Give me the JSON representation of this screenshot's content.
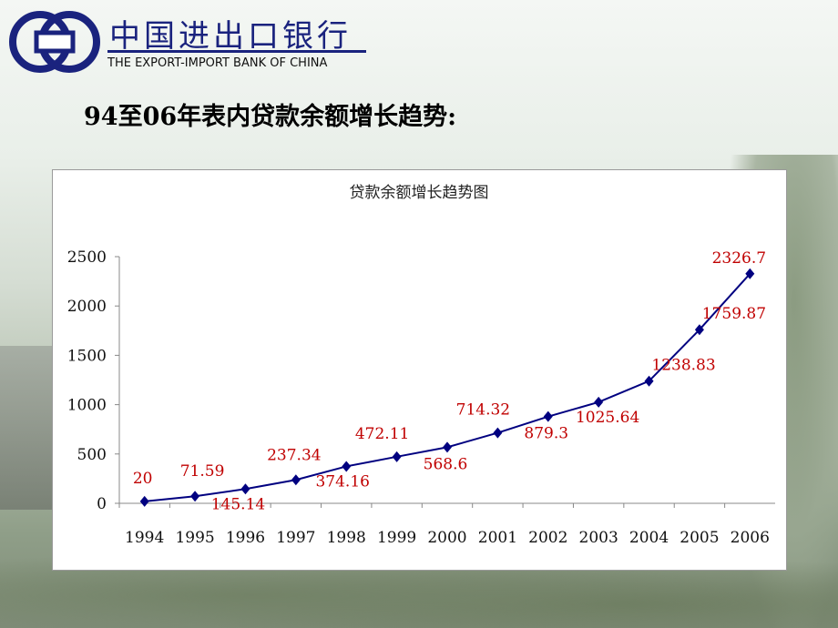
{
  "header": {
    "bank_name": "中国进出口银行",
    "bank_name_en": "THE EXPORT-IMPORT BANK OF CHINA"
  },
  "slide_title": "94至06年表内贷款余额增长趋势:",
  "chart_data": {
    "type": "line",
    "title": "贷款余额增长趋势图",
    "categories": [
      "1994",
      "1995",
      "1996",
      "1997",
      "1998",
      "1999",
      "2000",
      "2001",
      "2002",
      "2003",
      "2004",
      "2005",
      "2006"
    ],
    "values": [
      20,
      71.59,
      145.14,
      237.34,
      374.16,
      472.11,
      568.6,
      714.32,
      879.3,
      1025.64,
      1238.83,
      1759.87,
      2326.7
    ],
    "color": "#000080",
    "label_color": "#c00000",
    "ylim": [
      0,
      2500
    ],
    "yticks": [
      0,
      500,
      1000,
      1500,
      2000,
      2500
    ],
    "grid": false
  }
}
